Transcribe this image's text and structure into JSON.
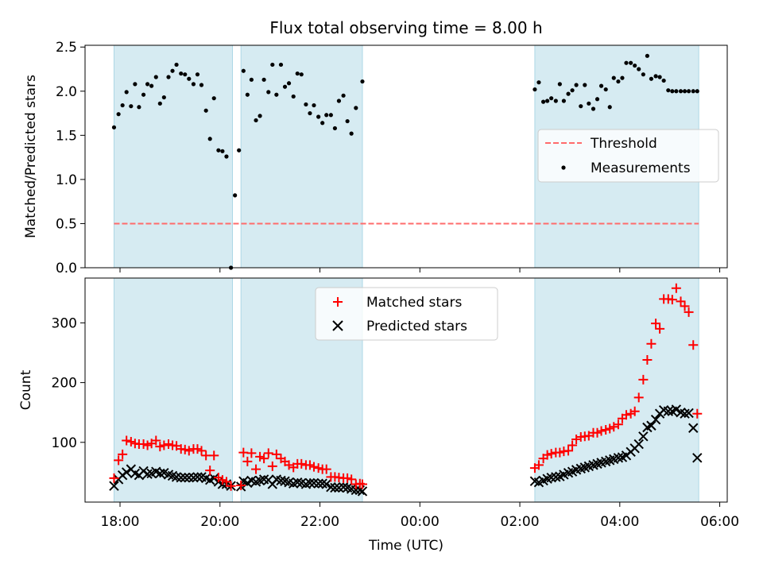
{
  "colors": {
    "shade": "#add8e6",
    "threshold": "#ff6b6b",
    "matched": "#ff0000",
    "predicted": "#000000",
    "measure": "#000000"
  },
  "chart_data": [
    {
      "type": "scatter",
      "title": "Flux total observing time = 8.00 h",
      "xlabel": "",
      "ylabel": "Matched/Predicted stars",
      "xlim": [
        17.3,
        30.15
      ],
      "ylim": [
        0,
        2.52
      ],
      "yticks": [
        "0.0",
        "0.5",
        "1.0",
        "1.5",
        "2.0",
        "2.5"
      ],
      "ytick_values": [
        0,
        0.5,
        1.0,
        1.5,
        2.0,
        2.5
      ],
      "shaded_regions": [
        [
          17.88,
          20.25
        ],
        [
          20.42,
          22.85
        ],
        [
          26.3,
          29.58
        ]
      ],
      "threshold": {
        "value": 0.5,
        "x": [
          17.88,
          29.58
        ]
      },
      "legend": {
        "position": "center-right",
        "entries": [
          "Threshold",
          "Measurements"
        ]
      },
      "series": [
        {
          "name": "Measurements",
          "x": [
            17.88,
            17.97,
            18.05,
            18.13,
            18.22,
            18.3,
            18.38,
            18.47,
            18.55,
            18.63,
            18.72,
            18.8,
            18.88,
            18.97,
            19.05,
            19.13,
            19.22,
            19.3,
            19.38,
            19.47,
            19.55,
            19.63,
            19.72,
            19.8,
            19.88,
            19.97,
            20.05,
            20.13,
            20.22,
            20.3,
            20.38,
            20.47,
            20.55,
            20.63,
            20.72,
            20.8,
            20.88,
            20.97,
            21.05,
            21.13,
            21.22,
            21.3,
            21.38,
            21.47,
            21.55,
            21.63,
            21.72,
            21.8,
            21.88,
            21.97,
            22.05,
            22.13,
            22.22,
            22.3,
            22.38,
            22.47,
            22.55,
            22.63,
            22.72,
            22.85,
            26.3,
            26.38,
            26.47,
            26.55,
            26.63,
            26.72,
            26.8,
            26.88,
            26.97,
            27.05,
            27.13,
            27.22,
            27.3,
            27.38,
            27.47,
            27.55,
            27.63,
            27.72,
            27.8,
            27.88,
            27.97,
            28.05,
            28.13,
            28.22,
            28.3,
            28.38,
            28.47,
            28.55,
            28.63,
            28.72,
            28.8,
            28.88,
            28.97,
            29.05,
            29.13,
            29.22,
            29.3,
            29.38,
            29.47,
            29.55
          ],
          "y": [
            1.59,
            1.74,
            1.84,
            1.99,
            1.83,
            2.08,
            1.82,
            1.96,
            2.08,
            2.06,
            2.16,
            1.86,
            1.93,
            2.16,
            2.23,
            2.3,
            2.2,
            2.19,
            2.14,
            2.08,
            2.19,
            2.07,
            1.78,
            1.46,
            1.92,
            1.33,
            1.32,
            1.26,
            0.0,
            0.82,
            1.33,
            2.23,
            1.96,
            2.13,
            1.67,
            1.72,
            2.13,
            1.99,
            2.3,
            1.96,
            2.3,
            2.05,
            2.09,
            1.94,
            2.2,
            2.19,
            1.85,
            1.75,
            1.84,
            1.71,
            1.64,
            1.73,
            1.73,
            1.58,
            1.89,
            1.95,
            1.66,
            1.52,
            1.81,
            2.11,
            2.02,
            2.1,
            1.88,
            1.89,
            1.92,
            1.89,
            2.08,
            1.89,
            1.97,
            2.01,
            2.07,
            1.83,
            2.07,
            1.86,
            1.8,
            1.91,
            2.06,
            2.02,
            1.82,
            2.15,
            2.11,
            2.15,
            2.32,
            2.32,
            2.29,
            2.25,
            2.19,
            2.4,
            2.14,
            2.17,
            2.16,
            2.12,
            2.01,
            2.0,
            2.0,
            2.0,
            2.0,
            2.0,
            2.0,
            2.0
          ]
        }
      ]
    },
    {
      "type": "scatter",
      "title": "",
      "xlabel": "Time (UTC)",
      "ylabel": "Count",
      "xlim": [
        17.3,
        30.15
      ],
      "ylim": [
        0,
        375
      ],
      "xticks": [
        "18:00",
        "20:00",
        "22:00",
        "00:00",
        "02:00",
        "04:00",
        "06:00"
      ],
      "xtick_values": [
        18,
        20,
        22,
        24,
        26,
        28,
        30
      ],
      "yticks": [
        "100",
        "200",
        "300"
      ],
      "ytick_values": [
        100,
        200,
        300
      ],
      "shaded_regions": [
        [
          17.88,
          20.25
        ],
        [
          20.42,
          22.85
        ],
        [
          26.3,
          29.58
        ]
      ],
      "legend": {
        "position": "top-center",
        "entries": [
          "Matched stars",
          "Predicted stars"
        ]
      },
      "series": [
        {
          "name": "Matched stars",
          "x": [
            17.88,
            17.97,
            18.05,
            18.13,
            18.22,
            18.3,
            18.38,
            18.47,
            18.55,
            18.63,
            18.72,
            18.8,
            18.88,
            18.97,
            19.05,
            19.13,
            19.22,
            19.3,
            19.38,
            19.47,
            19.55,
            19.63,
            19.72,
            19.8,
            19.88,
            19.97,
            20.05,
            20.13,
            20.22,
            20.42,
            20.47,
            20.55,
            20.63,
            20.72,
            20.8,
            20.88,
            20.97,
            21.05,
            21.13,
            21.22,
            21.3,
            21.38,
            21.47,
            21.55,
            21.63,
            21.72,
            21.8,
            21.88,
            21.97,
            22.05,
            22.13,
            22.22,
            22.3,
            22.38,
            22.47,
            22.55,
            22.63,
            22.72,
            22.8,
            22.85,
            26.3,
            26.38,
            26.47,
            26.55,
            26.63,
            26.72,
            26.8,
            26.88,
            26.97,
            27.05,
            27.13,
            27.22,
            27.3,
            27.38,
            27.47,
            27.55,
            27.63,
            27.72,
            27.8,
            27.88,
            27.97,
            28.05,
            28.13,
            28.22,
            28.3,
            28.38,
            28.47,
            28.55,
            28.63,
            28.72,
            28.8,
            28.88,
            28.97,
            29.05,
            29.13,
            29.22,
            29.3,
            29.38,
            29.47,
            29.55
          ],
          "y": [
            40,
            70,
            80,
            103,
            101,
            98,
            97,
            97,
            95,
            98,
            103,
            93,
            95,
            97,
            95,
            94,
            89,
            88,
            86,
            89,
            89,
            86,
            78,
            53,
            78,
            41,
            37,
            34,
            27,
            28,
            83,
            68,
            82,
            55,
            76,
            73,
            82,
            60,
            80,
            73,
            68,
            62,
            58,
            64,
            64,
            62,
            62,
            59,
            57,
            55,
            55,
            42,
            42,
            41,
            40,
            40,
            38,
            30,
            31,
            30,
            57,
            62,
            73,
            79,
            81,
            83,
            83,
            85,
            86,
            95,
            105,
            109,
            110,
            111,
            116,
            116,
            119,
            121,
            123,
            126,
            130,
            140,
            146,
            148,
            152,
            175,
            205,
            238,
            265,
            299,
            290,
            340,
            340,
            339,
            358,
            336,
            328,
            318,
            263,
            148
          ]
        },
        {
          "name": "Predicted stars",
          "x": [
            17.88,
            17.97,
            18.05,
            18.13,
            18.22,
            18.3,
            18.38,
            18.47,
            18.55,
            18.63,
            18.72,
            18.8,
            18.88,
            18.97,
            19.05,
            19.13,
            19.22,
            19.3,
            19.38,
            19.47,
            19.55,
            19.63,
            19.72,
            19.8,
            19.88,
            19.97,
            20.05,
            20.13,
            20.22,
            20.42,
            20.47,
            20.55,
            20.63,
            20.72,
            20.8,
            20.88,
            20.97,
            21.05,
            21.13,
            21.22,
            21.3,
            21.38,
            21.47,
            21.55,
            21.63,
            21.72,
            21.8,
            21.88,
            21.97,
            22.05,
            22.13,
            22.22,
            22.3,
            22.38,
            22.47,
            22.55,
            22.63,
            22.72,
            22.8,
            22.85,
            26.3,
            26.38,
            26.47,
            26.55,
            26.63,
            26.72,
            26.8,
            26.88,
            26.97,
            27.05,
            27.13,
            27.22,
            27.3,
            27.38,
            27.47,
            27.55,
            27.63,
            27.72,
            27.8,
            27.88,
            27.97,
            28.05,
            28.13,
            28.22,
            28.3,
            28.38,
            28.47,
            28.55,
            28.63,
            28.72,
            28.8,
            28.88,
            28.97,
            29.05,
            29.13,
            29.22,
            29.3,
            29.38,
            29.47,
            29.55
          ],
          "y": [
            27,
            38,
            45,
            50,
            55,
            48,
            45,
            52,
            47,
            48,
            51,
            48,
            49,
            46,
            44,
            42,
            41,
            41,
            41,
            41,
            42,
            42,
            40,
            37,
            40,
            34,
            30,
            30,
            27,
            26,
            35,
            32,
            36,
            34,
            36,
            38,
            37,
            30,
            38,
            36,
            35,
            33,
            31,
            33,
            32,
            30,
            32,
            32,
            31,
            31,
            30,
            25,
            24,
            24,
            25,
            24,
            22,
            20,
            20,
            18,
            35,
            33,
            36,
            39,
            41,
            42,
            43,
            46,
            49,
            51,
            54,
            56,
            58,
            60,
            62,
            64,
            66,
            68,
            70,
            72,
            74,
            75,
            78,
            84,
            90,
            97,
            110,
            125,
            128,
            138,
            148,
            154,
            152,
            152,
            155,
            150,
            148,
            149,
            124,
            74
          ]
        }
      ]
    }
  ]
}
